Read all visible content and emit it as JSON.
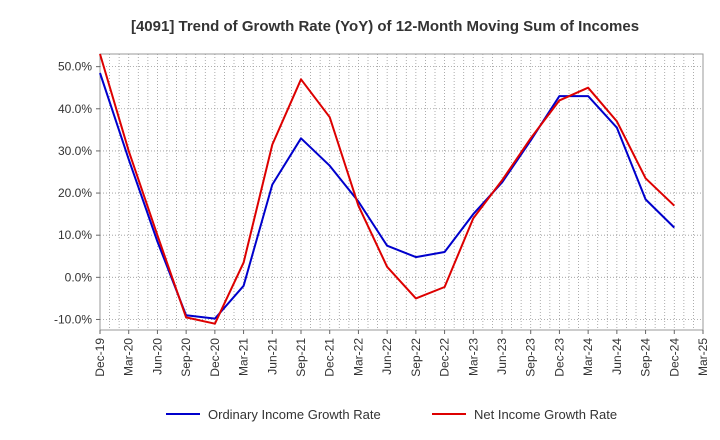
{
  "chart_data": {
    "type": "line",
    "title": "[4091]  Trend of Growth Rate (YoY) of 12-Month Moving Sum of Incomes",
    "x": [
      "Dec-19",
      "Mar-20",
      "Jun-20",
      "Sep-20",
      "Dec-20",
      "Mar-21",
      "Jun-21",
      "Sep-21",
      "Dec-21",
      "Mar-22",
      "Jun-22",
      "Sep-22",
      "Dec-22",
      "Mar-23",
      "Jun-23",
      "Sep-23",
      "Dec-23",
      "Mar-24",
      "Jun-24",
      "Sep-24",
      "Dec-24",
      "Mar-25"
    ],
    "y_ticks": [
      "-10.0%",
      "0.0%",
      "10.0%",
      "20.0%",
      "30.0%",
      "40.0%",
      "50.0%"
    ],
    "ylim": [
      -12.5,
      53
    ],
    "grid": true,
    "legend_position": "bottom",
    "series": [
      {
        "name": "Ordinary Income Growth Rate",
        "color": "#0000cc",
        "values": [
          48.5,
          28.0,
          8.5,
          -9.0,
          -9.8,
          -2.0,
          22.0,
          33.0,
          26.5,
          18.0,
          7.5,
          4.8,
          6.0,
          15.0,
          22.5,
          32.5,
          43.0,
          43.0,
          35.5,
          18.5,
          11.8,
          null
        ]
      },
      {
        "name": "Net Income Growth Rate",
        "color": "#dd0000",
        "values": [
          53.0,
          30.0,
          10.0,
          -9.5,
          -11.0,
          3.5,
          31.5,
          47.0,
          38.0,
          17.0,
          2.5,
          -5.0,
          -2.3,
          14.0,
          23.0,
          33.0,
          42.0,
          45.0,
          37.0,
          23.5,
          17.0,
          null
        ]
      }
    ]
  }
}
